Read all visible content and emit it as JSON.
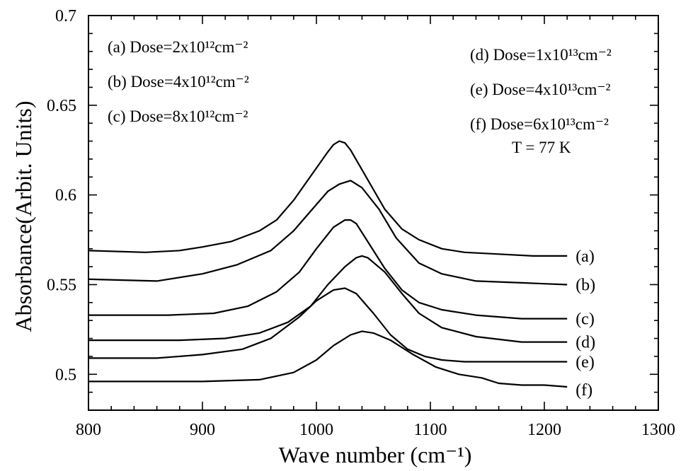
{
  "chart_data": {
    "type": "line",
    "xlabel": "Wave number (cm⁻¹)",
    "ylabel": "Absorbance(Arbit. Units)",
    "xlim": [
      800,
      1300
    ],
    "ylim": [
      0.48,
      0.7
    ],
    "x_ticks": [
      "800",
      "900",
      "1000",
      "1100",
      "1200",
      "1300"
    ],
    "y_ticks": [
      "0.5",
      "0.55",
      "0.6",
      "0.65",
      "0.7"
    ],
    "grid": false,
    "legend_left": [
      "(a) Dose=2x10¹²cm⁻²",
      "(b) Dose=4x10¹²cm⁻²",
      "(c) Dose=8x10¹²cm⁻²"
    ],
    "legend_right": [
      "(d) Dose=1x10¹³cm⁻²",
      "(e) Dose=4x10¹³cm⁻²",
      "(f) Dose=6x10¹³cm⁻²"
    ],
    "annotation": "T = 77 K",
    "series": [
      {
        "name": "(a)",
        "x": [
          800,
          850,
          880,
          900,
          925,
          950,
          965,
          980,
          990,
          1000,
          1010,
          1015,
          1020,
          1025,
          1030,
          1040,
          1050,
          1060,
          1075,
          1090,
          1110,
          1130,
          1160,
          1190,
          1220
        ],
        "y": [
          0.569,
          0.568,
          0.569,
          0.571,
          0.574,
          0.58,
          0.586,
          0.597,
          0.606,
          0.615,
          0.624,
          0.628,
          0.63,
          0.629,
          0.625,
          0.614,
          0.603,
          0.592,
          0.581,
          0.575,
          0.57,
          0.568,
          0.567,
          0.566,
          0.566
        ]
      },
      {
        "name": "(b)",
        "x": [
          800,
          860,
          900,
          930,
          960,
          980,
          995,
          1010,
          1020,
          1030,
          1040,
          1055,
          1070,
          1090,
          1110,
          1140,
          1180,
          1220
        ],
        "y": [
          0.553,
          0.552,
          0.556,
          0.561,
          0.569,
          0.58,
          0.591,
          0.602,
          0.606,
          0.608,
          0.604,
          0.592,
          0.576,
          0.562,
          0.556,
          0.552,
          0.551,
          0.55
        ]
      },
      {
        "name": "(c)",
        "x": [
          800,
          870,
          910,
          940,
          965,
          985,
          1000,
          1015,
          1025,
          1030,
          1035,
          1045,
          1060,
          1075,
          1090,
          1110,
          1140,
          1180,
          1220
        ],
        "y": [
          0.533,
          0.533,
          0.534,
          0.538,
          0.546,
          0.557,
          0.57,
          0.582,
          0.586,
          0.586,
          0.584,
          0.574,
          0.559,
          0.547,
          0.54,
          0.536,
          0.533,
          0.531,
          0.531
        ]
      },
      {
        "name": "(d)",
        "x": [
          800,
          880,
          920,
          950,
          975,
          995,
          1010,
          1025,
          1035,
          1040,
          1045,
          1060,
          1075,
          1090,
          1110,
          1140,
          1180,
          1220
        ],
        "y": [
          0.519,
          0.519,
          0.52,
          0.523,
          0.529,
          0.538,
          0.55,
          0.56,
          0.565,
          0.566,
          0.565,
          0.557,
          0.545,
          0.534,
          0.526,
          0.521,
          0.518,
          0.518
        ]
      },
      {
        "name": "(e)",
        "x": [
          800,
          860,
          900,
          935,
          960,
          985,
          1000,
          1015,
          1025,
          1035,
          1050,
          1065,
          1080,
          1095,
          1110,
          1130,
          1160,
          1220
        ],
        "y": [
          0.509,
          0.509,
          0.511,
          0.514,
          0.52,
          0.532,
          0.541,
          0.547,
          0.548,
          0.545,
          0.534,
          0.522,
          0.514,
          0.51,
          0.508,
          0.507,
          0.507,
          0.507
        ]
      },
      {
        "name": "(f)",
        "x": [
          800,
          900,
          950,
          980,
          1000,
          1015,
          1030,
          1040,
          1050,
          1065,
          1085,
          1105,
          1125,
          1145,
          1160,
          1180,
          1200,
          1220
        ],
        "y": [
          0.496,
          0.496,
          0.497,
          0.501,
          0.508,
          0.516,
          0.522,
          0.524,
          0.523,
          0.519,
          0.511,
          0.504,
          0.5,
          0.498,
          0.495,
          0.494,
          0.494,
          0.493
        ]
      }
    ]
  }
}
